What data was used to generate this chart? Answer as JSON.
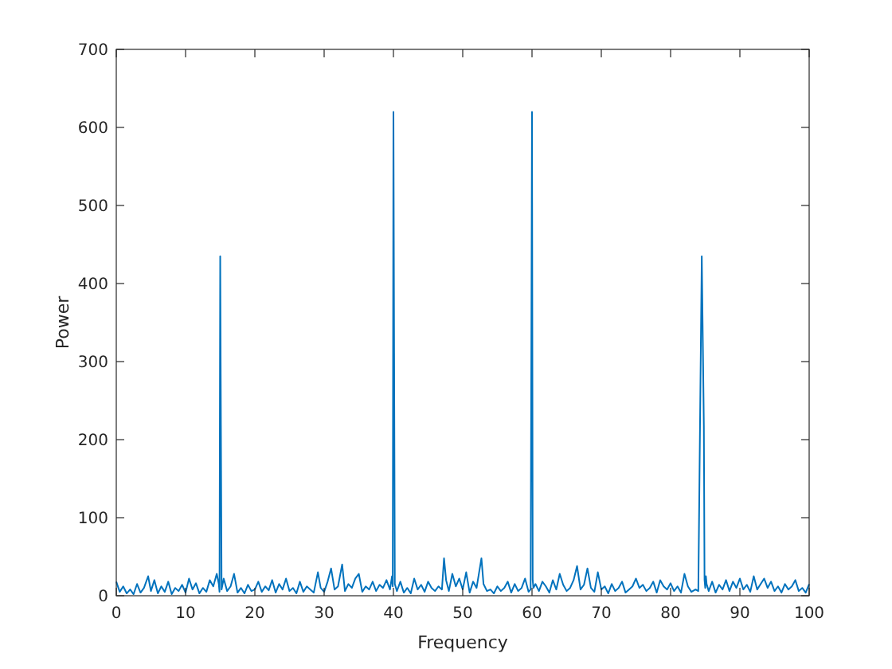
{
  "chart_data": {
    "type": "line",
    "xlabel": "Frequency",
    "ylabel": "Power",
    "xlim": [
      0,
      100
    ],
    "ylim": [
      0,
      700
    ],
    "xticks": [
      0,
      10,
      20,
      30,
      40,
      50,
      60,
      70,
      80,
      90,
      100
    ],
    "yticks": [
      0,
      100,
      200,
      300,
      400,
      500,
      600,
      700
    ],
    "grid": false,
    "marker": "none",
    "line_style": "solid",
    "series": [
      {
        "color": "#0072bd",
        "x": [
          0,
          0.5,
          1,
          1.5,
          2,
          2.5,
          3,
          3.5,
          4,
          4.6,
          5,
          5.5,
          6,
          6.5,
          7,
          7.5,
          8,
          8.5,
          9,
          9.5,
          10,
          10.5,
          11,
          11.5,
          12,
          12.5,
          13,
          13.5,
          14,
          14.5,
          14.8,
          14.9,
          15,
          15.1,
          15.2,
          15.5,
          16,
          16.5,
          17,
          17.5,
          18,
          18.5,
          19,
          19.5,
          20,
          20.5,
          21,
          21.5,
          22,
          22.5,
          23,
          23.5,
          24,
          24.5,
          25,
          25.5,
          26,
          26.5,
          27,
          27.5,
          28,
          28.5,
          29.1,
          29.5,
          30,
          30.5,
          31,
          31.5,
          32,
          32.6,
          33,
          33.5,
          34,
          34.5,
          35,
          35.5,
          36,
          36.5,
          37,
          37.5,
          38,
          38.5,
          39,
          39.5,
          39.8,
          39.9,
          40,
          40.1,
          40.2,
          40.5,
          41,
          41.5,
          42,
          42.5,
          43,
          43.5,
          44,
          44.5,
          45,
          45.5,
          46,
          46.5,
          47,
          47.3,
          47.6,
          48,
          48.5,
          49,
          49.5,
          50,
          50.5,
          51,
          51.5,
          52,
          52.7,
          53,
          53.5,
          54,
          54.5,
          55,
          55.5,
          56,
          56.5,
          57,
          57.5,
          58,
          58.5,
          59,
          59.5,
          59.8,
          59.9,
          60,
          60.1,
          60.2,
          60.5,
          61,
          61.5,
          62,
          62.5,
          63,
          63.5,
          64,
          64.5,
          65,
          65.5,
          66,
          66.5,
          67,
          67.5,
          68,
          68.5,
          69,
          69.5,
          70,
          70.5,
          71,
          71.5,
          72,
          72.5,
          73,
          73.5,
          74,
          74.5,
          75,
          75.5,
          76,
          76.5,
          77,
          77.5,
          78,
          78.5,
          79,
          79.5,
          80,
          80.5,
          81,
          81.5,
          82,
          82.5,
          83,
          83.6,
          84,
          84.5,
          84.8,
          84.9,
          85,
          85.1,
          85.2,
          85.5,
          86,
          86.5,
          87,
          87.5,
          88,
          88.5,
          89,
          89.5,
          90,
          90.5,
          91,
          91.5,
          92,
          92.5,
          93,
          93.5,
          94,
          94.5,
          95,
          95.5,
          96,
          96.5,
          97,
          97.5,
          98,
          98.5,
          99,
          99.5,
          100
        ],
        "values": [
          18,
          5,
          12,
          3,
          8,
          2,
          15,
          4,
          10,
          25,
          6,
          20,
          3,
          12,
          5,
          18,
          2,
          10,
          6,
          14,
          4,
          22,
          8,
          16,
          3,
          10,
          5,
          20,
          12,
          28,
          15,
          5,
          435,
          218,
          8,
          22,
          6,
          12,
          28,
          4,
          10,
          3,
          14,
          6,
          8,
          18,
          5,
          12,
          7,
          20,
          4,
          15,
          8,
          22,
          6,
          10,
          3,
          18,
          5,
          12,
          8,
          4,
          30,
          10,
          5,
          18,
          35,
          8,
          12,
          40,
          6,
          15,
          10,
          22,
          28,
          5,
          12,
          8,
          18,
          6,
          14,
          10,
          20,
          8,
          25,
          12,
          620,
          311,
          15,
          6,
          18,
          4,
          10,
          3,
          22,
          8,
          14,
          5,
          18,
          10,
          6,
          12,
          8,
          48,
          20,
          6,
          28,
          12,
          22,
          8,
          30,
          4,
          18,
          10,
          48,
          15,
          6,
          8,
          3,
          12,
          6,
          10,
          18,
          4,
          15,
          6,
          10,
          22,
          5,
          8,
          310,
          620,
          20,
          10,
          15,
          6,
          18,
          12,
          4,
          20,
          8,
          28,
          14,
          6,
          10,
          20,
          38,
          8,
          14,
          35,
          10,
          5,
          30,
          8,
          12,
          3,
          15,
          6,
          10,
          18,
          4,
          8,
          12,
          22,
          10,
          14,
          6,
          10,
          18,
          4,
          20,
          12,
          8,
          16,
          6,
          12,
          4,
          28,
          12,
          5,
          8,
          6,
          435,
          218,
          20,
          10,
          25,
          15,
          6,
          18,
          4,
          14,
          8,
          20,
          6,
          18,
          10,
          22,
          8,
          14,
          5,
          25,
          8,
          15,
          22,
          10,
          18,
          6,
          12,
          4,
          15,
          8,
          12,
          20,
          6,
          10,
          4,
          15
        ]
      }
    ]
  }
}
